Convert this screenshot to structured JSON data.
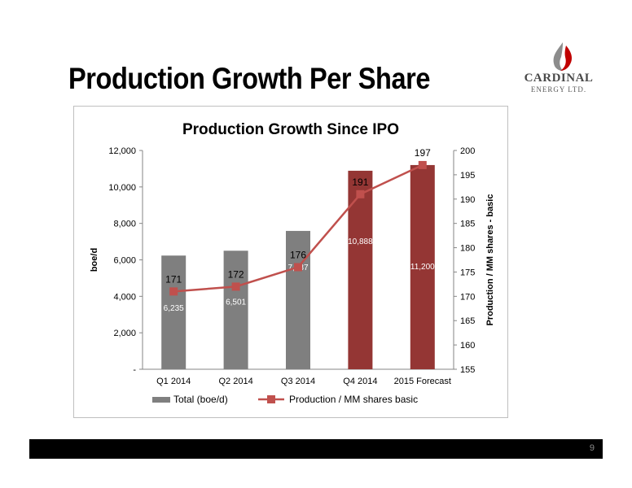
{
  "slide": {
    "title": "Production Growth Per Share",
    "page_number": "9"
  },
  "logo": {
    "name": "CARDINAL",
    "subtitle": "ENERGY LTD."
  },
  "colors": {
    "grey_bar": "#7f7f7f",
    "red_bar": "#943634",
    "line": "#c0504d",
    "footer": "#000000"
  },
  "chart_data": {
    "type": "bar",
    "title": "Production Growth Since IPO",
    "categories": [
      "Q1 2014",
      "Q2 2014",
      "Q3 2014",
      "Q4 2014",
      "2015 Forecast"
    ],
    "series": [
      {
        "name": "Total (boe/d)",
        "chart_type": "bar",
        "axis": "left",
        "values": [
          6235,
          6501,
          7587,
          10888,
          11200
        ],
        "labels": [
          "6,235",
          "6,501",
          "7,587",
          "10,888",
          "11,200"
        ]
      },
      {
        "name": "Production / MM shares basic",
        "chart_type": "line",
        "axis": "right",
        "values": [
          171,
          172,
          176,
          191,
          197
        ],
        "labels": [
          "171",
          "172",
          "176",
          "191",
          "197"
        ]
      }
    ],
    "ylabel": "boe/d",
    "ylim": [
      0,
      12000
    ],
    "yticks": [
      "-",
      "2,000",
      "4,000",
      "6,000",
      "8,000",
      "10,000",
      "12,000"
    ],
    "ylabel_right": "Production / MM shares - basic",
    "ylim_right": [
      155,
      200
    ],
    "yticks_right": [
      "155",
      "160",
      "165",
      "170",
      "175",
      "180",
      "185",
      "190",
      "195",
      "200"
    ],
    "legend_position": "bottom",
    "grid": false
  }
}
